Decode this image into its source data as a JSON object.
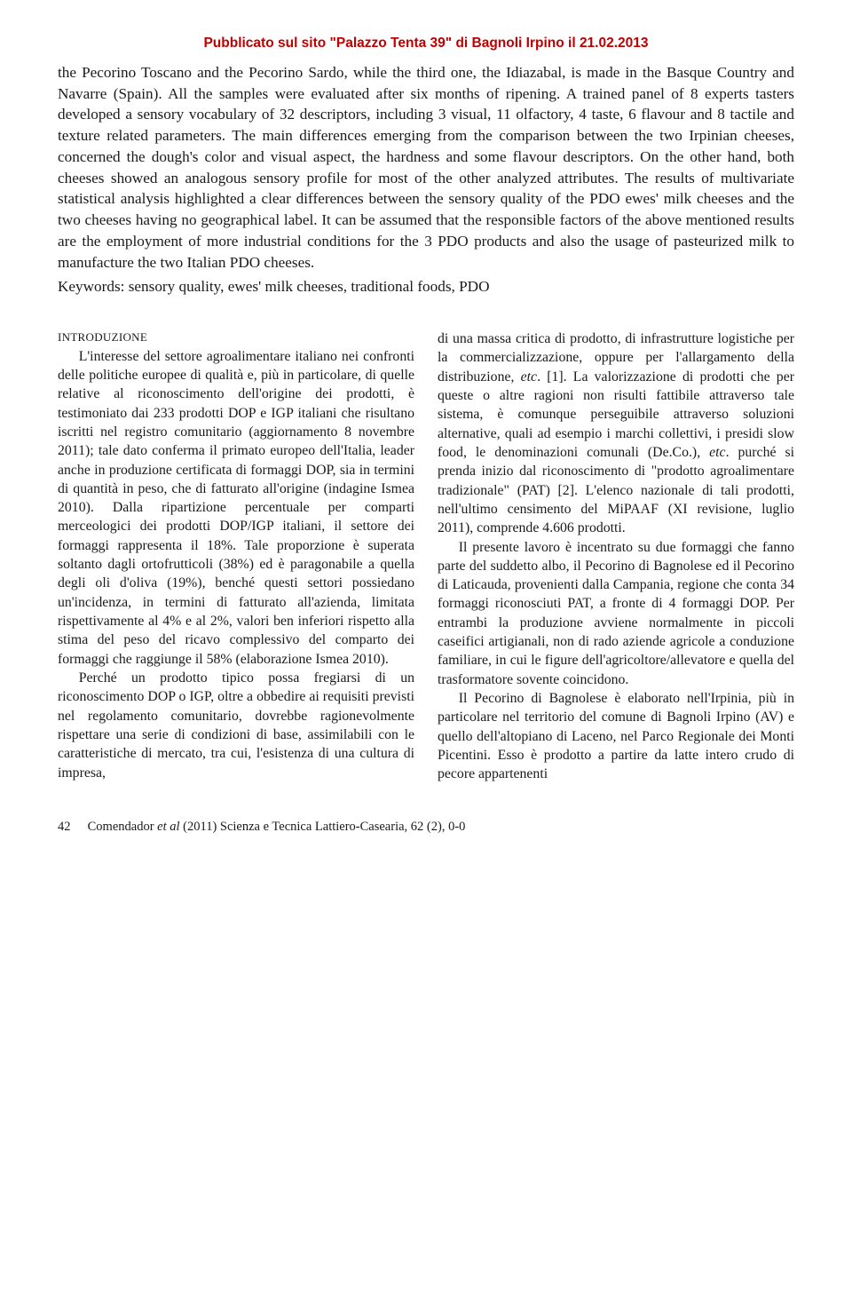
{
  "header_note": "Pubblicato sul sito \"Palazzo Tenta 39\" di Bagnoli Irpino il 21.02.2013",
  "abstract": "the Pecorino Toscano and the Pecorino Sardo, while the third one, the Idiazabal, is made in the Basque Country and Navarre (Spain). All the samples were evaluated after six months of ripening. A trained panel of 8 experts tasters developed a sensory vocabulary of 32 descriptors, including 3 visual, 11 olfactory, 4 taste, 6 flavour and 8 tactile and texture related parameters. The main differences emerging from the comparison between the two Irpinian cheeses, concerned the dough's color and visual aspect, the hardness and some flavour descriptors. On the other hand, both cheeses showed an analogous sensory profile for most of the other analyzed attributes. The results of multivariate statistical analysis highlighted a clear differences between the sensory quality of the PDO ewes' milk cheeses and the two cheeses having no geographical label. It can be assumed that the responsible factors of the above mentioned results are the employment of more industrial conditions for the 3 PDO products and also the usage of pasteurized milk to manufacture the two Italian PDO cheeses.",
  "keywords": "Keywords: sensory quality, ewes' milk cheeses, traditional foods, PDO",
  "section_title": "INTRODUZIONE",
  "left_col": {
    "p1": "L'interesse del settore agroalimentare italiano nei confronti delle politiche europee di qualità e, più in particolare, di quelle relative al riconoscimento dell'origine dei prodotti, è testimoniato dai 233 prodotti DOP e IGP italiani che risultano iscritti nel registro comunitario (aggiornamento 8 novembre 2011); tale dato conferma il primato europeo dell'Italia, leader anche in produzione certificata di formaggi DOP, sia in termini di quantità in peso, che di fatturato all'origine (indagine Ismea 2010). Dalla ripartizione percentuale per comparti merceologici dei prodotti DOP/IGP italiani, il settore dei formaggi rappresenta il 18%. Tale proporzione è superata soltanto dagli ortofrutticoli (38%) ed è paragonabile a quella degli oli d'oliva (19%), benché questi settori possiedano un'incidenza, in termini di fatturato all'azienda, limitata rispettivamente al 4% e al 2%, valori ben inferiori rispetto alla stima del peso del ricavo complessivo del comparto dei formaggi che raggiunge il 58% (elaborazione Ismea 2010).",
    "p2": "Perché un prodotto tipico possa fregiarsi di un riconoscimento DOP o IGP, oltre a obbedire ai requisiti previsti nel regolamento comunitario, dovrebbe ragionevolmente rispettare una serie di condizioni di base, assimilabili con le caratteristiche di mercato, tra cui, l'esistenza di una cultura di impresa,"
  },
  "right_col": {
    "p1_prefix": "di una massa critica di prodotto, di infrastrutture logistiche per la commercializzazione, oppure per l'allargamento della distribuzione, ",
    "p1_italic": "etc",
    "p1_mid": ". [1]. La valorizzazione di prodotti che per queste o altre ragioni non risulti fattibile attraverso tale sistema, è comunque perseguibile attraverso soluzioni alternative, quali ad esempio i marchi collettivi, i presidi slow food, le denominazioni comunali (De.Co.), ",
    "p1_italic2": "etc",
    "p1_suffix": ". purché si prenda inizio dal riconoscimento di \"prodotto agroalimentare tradizionale\" (PAT) [2]. L'elenco nazionale di tali prodotti, nell'ultimo censimento del MiPAAF (XI revisione, luglio 2011), comprende 4.606 prodotti.",
    "p2": "Il presente lavoro è incentrato su due formaggi che fanno parte del suddetto albo, il Pecorino di Bagnolese ed il Pecorino di Laticauda, provenienti dalla Campania, regione che conta 34 formaggi riconosciuti PAT, a fronte di 4 formaggi DOP. Per entrambi la produzione avviene normalmente in piccoli caseifici artigianali, non di rado aziende agricole a conduzione familiare, in cui le figure dell'agricoltore/allevatore e quella del trasformatore sovente coincidono.",
    "p3": "Il Pecorino di Bagnolese è elaborato nell'Irpinia, più in particolare nel territorio del comune di Bagnoli Irpino (AV) e quello dell'altopiano di Laceno, nel Parco Regionale dei Monti Picentini. Esso è prodotto a partire da latte intero crudo di pecore appartenenti"
  },
  "footer": {
    "page": "42",
    "author": "Comendador ",
    "etal": "et al ",
    "cite": "(2011) Scienza e Tecnica Lattiero-Casearia, 62 (2), 0-0"
  }
}
